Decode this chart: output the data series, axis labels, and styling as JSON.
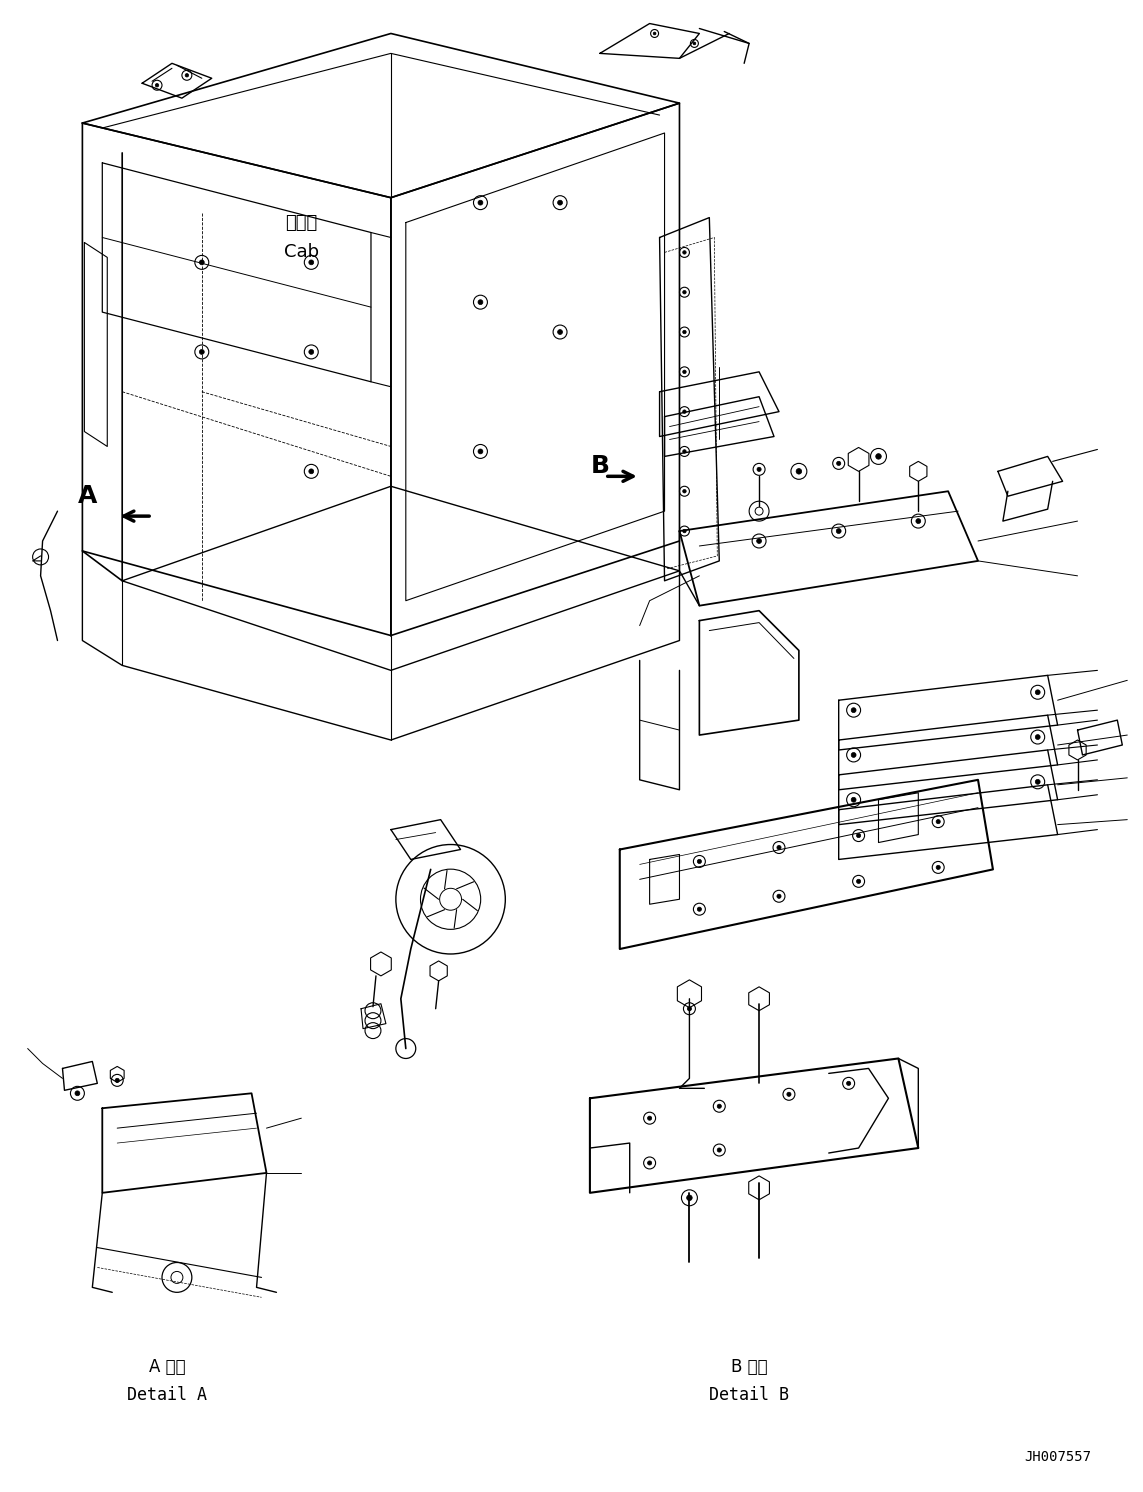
{
  "background_color": "#ffffff",
  "fig_width": 11.43,
  "fig_height": 14.92,
  "dpi": 100,
  "labels": {
    "cab_japanese": "キャブ",
    "cab_english": "Cab",
    "detail_a_japanese": "A 詳細",
    "detail_a_english": "Detail A",
    "detail_b_japanese": "B 詳細",
    "detail_b_english": "Detail B",
    "part_number": "JH007557",
    "label_A": "A",
    "label_B": "B"
  },
  "colors": {
    "line": "#000000",
    "background": "#ffffff",
    "text": "#000000"
  }
}
